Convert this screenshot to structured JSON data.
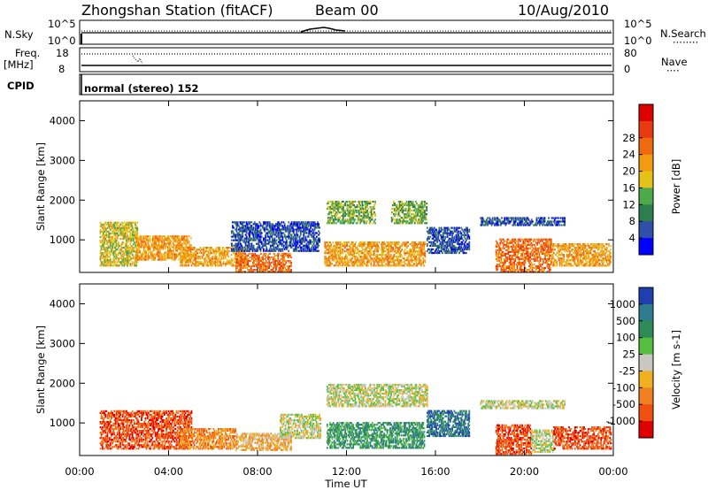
{
  "header": {
    "station": "Zhongshan Station (fitACF)",
    "beam": "Beam 00",
    "date": "10/Aug/2010",
    "nsky_label": "N.Sky",
    "nsearch_label": "N.Search",
    "nsearch_style": "········",
    "freq_label": "Freq.",
    "freq_unit": "[MHz]",
    "nave_label": "Nave",
    "nave_style": "····",
    "cpid_label": "CPID",
    "cpid_value": "normal (stereo) 152",
    "nsky_ticks": [
      "10^5",
      "10^0"
    ],
    "nsearch_ticks": [
      "10^5",
      "10^0"
    ],
    "freq_ticks": [
      "18",
      "8"
    ],
    "nave_ticks": [
      "80",
      "0"
    ]
  },
  "chart_data": [
    {
      "type": "heatmap",
      "name": "power",
      "ylabel": "Slant Range [km]",
      "xlabel": "Time UT",
      "ylim": [
        180,
        4500
      ],
      "xlim": [
        0,
        24
      ],
      "yticks": [
        1000,
        2000,
        3000,
        4000
      ],
      "xticks": [
        "00:00",
        "04:00",
        "08:00",
        "12:00",
        "16:00",
        "20:00",
        "00:00"
      ],
      "colorbar": {
        "label": "Power [dB]",
        "ticks": [
          "4",
          "8",
          "12",
          "16",
          "20",
          "24",
          "28"
        ],
        "colors": [
          "#0000ff",
          "#2f4fa8",
          "#2d7d4f",
          "#4caa4a",
          "#e5c21a",
          "#f39a10",
          "#f06a10",
          "#e83a10",
          "#dd0000"
        ]
      },
      "regions": [
        {
          "t0": 0.9,
          "t1": 2.6,
          "r0": 330,
          "r1": 1450,
          "c": 4
        },
        {
          "t0": 2.5,
          "t1": 5.0,
          "r0": 480,
          "r1": 1100,
          "c": 5
        },
        {
          "t0": 4.5,
          "t1": 7.5,
          "r0": 330,
          "r1": 800,
          "c": 5
        },
        {
          "t0": 7.0,
          "t1": 9.5,
          "r0": 180,
          "r1": 650,
          "c": 6
        },
        {
          "t0": 6.8,
          "t1": 10.8,
          "r0": 700,
          "r1": 1450,
          "c": 1
        },
        {
          "t0": 11.0,
          "t1": 15.5,
          "r0": 330,
          "r1": 950,
          "c": 5
        },
        {
          "t0": 11.1,
          "t1": 13.3,
          "r0": 1400,
          "r1": 1950,
          "c": 3
        },
        {
          "t0": 14.0,
          "t1": 15.6,
          "r0": 1400,
          "r1": 1950,
          "c": 3
        },
        {
          "t0": 15.6,
          "t1": 17.5,
          "r0": 650,
          "r1": 1300,
          "c": 1
        },
        {
          "t0": 18.7,
          "t1": 21.2,
          "r0": 180,
          "r1": 1000,
          "c": 6
        },
        {
          "t0": 21.2,
          "t1": 23.9,
          "r0": 330,
          "r1": 900,
          "c": 5
        },
        {
          "t0": 18.0,
          "t1": 21.8,
          "r0": 1350,
          "r1": 1550,
          "c": 1
        }
      ]
    },
    {
      "type": "heatmap",
      "name": "velocity",
      "ylabel": "Slant Range [km]",
      "xlabel": "Time UT",
      "ylim": [
        180,
        4500
      ],
      "xlim": [
        0,
        24
      ],
      "yticks": [
        1000,
        2000,
        3000,
        4000
      ],
      "xticks": [
        "00:00",
        "04:00",
        "08:00",
        "12:00",
        "16:00",
        "20:00",
        "00:00"
      ],
      "colorbar": {
        "label": "Velocity [m s-1]",
        "ticks": [
          "1000",
          "500",
          "100",
          "25",
          "-25",
          "-100",
          "-500",
          "-1000"
        ],
        "colors": [
          "#1f3fb0",
          "#2d7d8f",
          "#2e8b57",
          "#55c040",
          "#c8c8c0",
          "#f0b020",
          "#f08020",
          "#f05010",
          "#e00000"
        ]
      },
      "regions": [
        {
          "t0": 0.9,
          "t1": 5.0,
          "r0": 330,
          "r1": 1300,
          "c": 7
        },
        {
          "t0": 4.5,
          "t1": 7.0,
          "r0": 330,
          "r1": 850,
          "c": 6
        },
        {
          "t0": 7.0,
          "t1": 9.5,
          "r0": 300,
          "r1": 750,
          "c": 5
        },
        {
          "t0": 9.0,
          "t1": 10.8,
          "r0": 600,
          "r1": 1200,
          "c": 4
        },
        {
          "t0": 11.1,
          "t1": 15.5,
          "r0": 350,
          "r1": 1000,
          "c": 2
        },
        {
          "t0": 11.1,
          "t1": 15.6,
          "r0": 1400,
          "r1": 1950,
          "c": 4
        },
        {
          "t0": 15.6,
          "t1": 17.5,
          "r0": 650,
          "r1": 1300,
          "c": 1
        },
        {
          "t0": 18.7,
          "t1": 20.3,
          "r0": 200,
          "r1": 950,
          "c": 7
        },
        {
          "t0": 20.3,
          "t1": 21.3,
          "r0": 250,
          "r1": 800,
          "c": 4
        },
        {
          "t0": 21.3,
          "t1": 23.9,
          "r0": 330,
          "r1": 900,
          "c": 7
        },
        {
          "t0": 18.0,
          "t1": 21.8,
          "r0": 1350,
          "r1": 1550,
          "c": 4
        }
      ]
    }
  ]
}
